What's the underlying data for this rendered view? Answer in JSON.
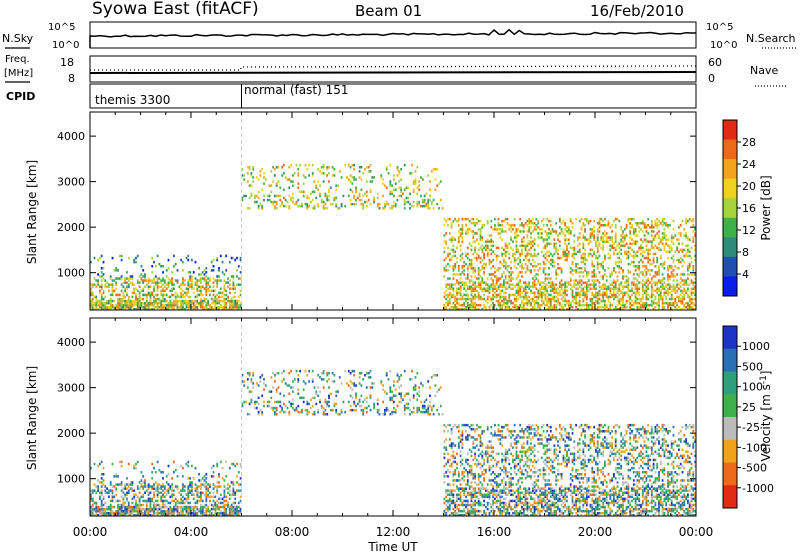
{
  "header": {
    "title": "Syowa East (fitACF)",
    "beam": "Beam 01",
    "date": "16/Feb/2010"
  },
  "noise_panel": {
    "left_label": "N.Sky",
    "left_ticks": [
      "10^5",
      "10^0"
    ],
    "right_ticks": [
      "10^5",
      "10^0"
    ],
    "right_label": "N.Search"
  },
  "freq_panel": {
    "left_label_line1": "Freq.",
    "left_label_line2": "[MHz]",
    "left_ticks": [
      "18",
      "8"
    ],
    "right_ticks": [
      "60",
      "0"
    ],
    "right_label": "Nave"
  },
  "cpid_panel": {
    "label": "CPID",
    "segments": [
      {
        "name": "themis 3300",
        "start_hour": 0
      },
      {
        "name": "normal (fast) 151",
        "start_hour": 6
      }
    ]
  },
  "chart_data": [
    {
      "type": "heatmap",
      "quantity": "Power",
      "xlabel": "Time UT",
      "ylabel": "Slant Range [km]",
      "xlim_hours": [
        0,
        24
      ],
      "ylim_km": [
        180,
        4530
      ],
      "x_ticks": [
        "00:00",
        "04:00",
        "08:00",
        "12:00",
        "16:00",
        "20:00",
        "00:00"
      ],
      "y_ticks": [
        1000,
        2000,
        3000,
        4000
      ],
      "colorbar": {
        "label": "Power [dB]",
        "min": 0,
        "max": 32,
        "ticks": [
          "4",
          "8",
          "12",
          "16",
          "20",
          "24",
          "28"
        ],
        "colors": [
          "#0b1ee6",
          "#1f4fb0",
          "#2e8b7a",
          "#3fb04a",
          "#a6d33a",
          "#f0d11e",
          "#f3a41c",
          "#ec6a17",
          "#e02a14"
        ]
      },
      "activity_regions": [
        {
          "t0": 0,
          "t1": 6,
          "r0": 180,
          "r1": 900,
          "density": 0.8,
          "level": 18
        },
        {
          "t0": 0,
          "t1": 6,
          "r0": 900,
          "r1": 1400,
          "density": 0.15,
          "level": 8
        },
        {
          "t0": 6,
          "t1": 14,
          "r0": 2400,
          "r1": 3400,
          "density": 0.25,
          "level": 17
        },
        {
          "t0": 14,
          "t1": 24,
          "r0": 180,
          "r1": 2200,
          "density": 0.55,
          "level": 20
        }
      ]
    },
    {
      "type": "heatmap",
      "quantity": "Velocity",
      "xlabel": "Time UT",
      "ylabel": "Slant Range [km]",
      "xlim_hours": [
        0,
        24
      ],
      "ylim_km": [
        180,
        4530
      ],
      "x_ticks": [
        "00:00",
        "04:00",
        "08:00",
        "12:00",
        "16:00",
        "20:00",
        "00:00"
      ],
      "y_ticks": [
        1000,
        2000,
        3000,
        4000
      ],
      "colorbar": {
        "label": "Velocity [m s^-1]",
        "ticks": [
          "1000",
          "500",
          "100",
          "25",
          "-25",
          "-100",
          "-500",
          "-1000"
        ],
        "colors": [
          "#1c33c8",
          "#2a6fb5",
          "#2f9e7a",
          "#3fb04a",
          "#bbbbbb",
          "#f0a31a",
          "#ef6a16",
          "#e22b13"
        ]
      }
    }
  ]
}
